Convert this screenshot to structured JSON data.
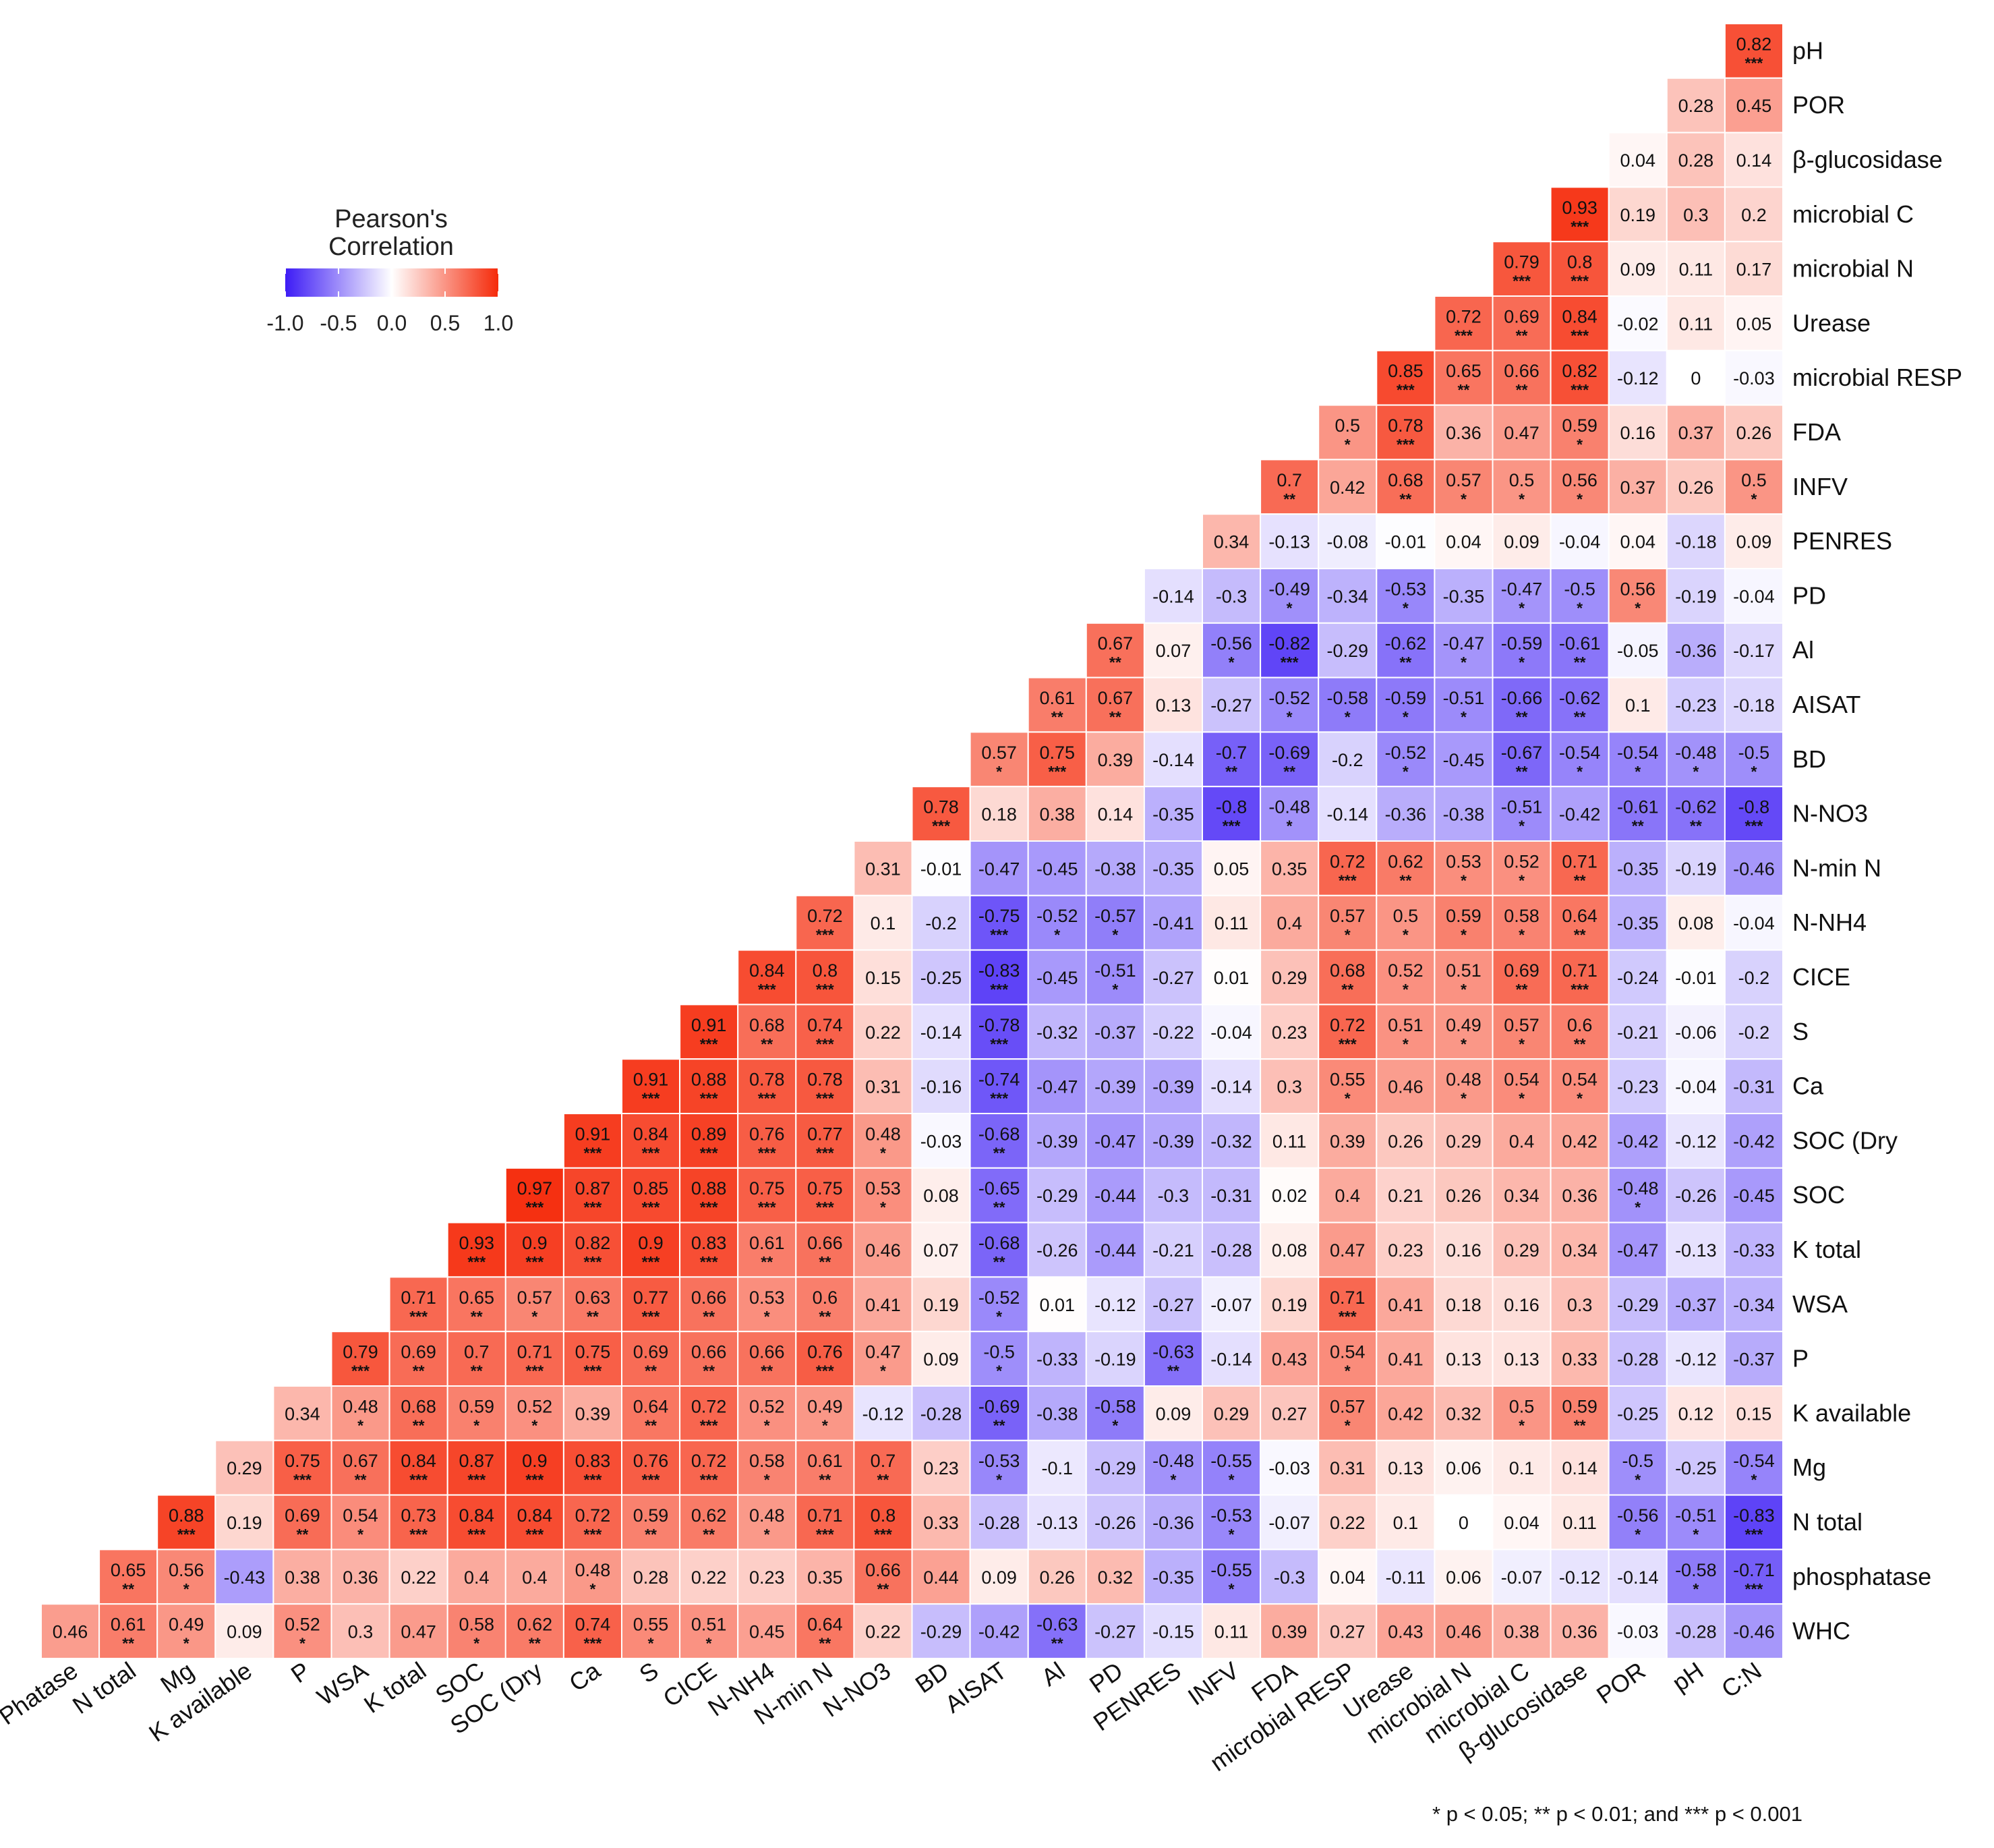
{
  "chart_data": {
    "type": "heatmap",
    "legend": {
      "title_line1": "Pearson's",
      "title_line2": "Correlation",
      "min": -1.0,
      "max": 1.0,
      "ticks": [
        "-1.0",
        "-0.5",
        "0.0",
        "0.5",
        "1.0"
      ],
      "colors": {
        "low": "#3d1cf5",
        "mid": "#ffffff",
        "high": "#f52a0a"
      },
      "placement": "top-left"
    },
    "footnote": "* p < 0.05; ** p < 0.01; and *** p < 0.001",
    "columns": [
      "Phatase",
      "N total",
      "Mg",
      "K available",
      "P",
      "WSA",
      "K total",
      "SOC",
      "SOC (Dry",
      "Ca",
      "S",
      "CICE",
      "N-NH4",
      "N-min N",
      "N-NO3",
      "BD",
      "AISAT",
      "Al",
      "PD",
      "PENRES",
      "INFV",
      "FDA",
      "microbial RESP",
      "Urease",
      "microbial N",
      "microbial C",
      "β-glucosidase",
      "POR",
      "pH",
      "C:N"
    ],
    "rows": [
      {
        "label": "pH",
        "start": 29,
        "values": [
          0.82
        ],
        "stars": [
          "***"
        ]
      },
      {
        "label": "POR",
        "start": 28,
        "values": [
          0.28,
          0.45
        ],
        "stars": [
          "",
          ""
        ]
      },
      {
        "label": "β-glucosidase",
        "start": 27,
        "values": [
          0.04,
          0.28,
          0.14
        ],
        "stars": [
          "",
          "",
          ""
        ]
      },
      {
        "label": "microbial C",
        "start": 26,
        "values": [
          0.93,
          0.19,
          0.3,
          0.2
        ],
        "stars": [
          "***",
          "",
          "",
          ""
        ]
      },
      {
        "label": "microbial N",
        "start": 25,
        "values": [
          0.79,
          0.8,
          0.09,
          0.11,
          0.17
        ],
        "stars": [
          "***",
          "***",
          "",
          "",
          ""
        ]
      },
      {
        "label": "Urease",
        "start": 24,
        "values": [
          0.72,
          0.69,
          0.84,
          -0.02,
          0.11,
          0.05
        ],
        "stars": [
          "***",
          "**",
          "***",
          "",
          "",
          ""
        ]
      },
      {
        "label": "microbial RESP",
        "start": 23,
        "values": [
          0.85,
          0.65,
          0.66,
          0.82,
          -0.12,
          0,
          -0.03
        ],
        "stars": [
          "***",
          "**",
          "**",
          "***",
          "",
          "",
          ""
        ]
      },
      {
        "label": "FDA",
        "start": 22,
        "values": [
          0.5,
          0.78,
          0.36,
          0.47,
          0.59,
          0.16,
          0.37,
          0.26
        ],
        "stars": [
          "*",
          "***",
          "",
          "",
          "*",
          "",
          "",
          ""
        ]
      },
      {
        "label": "INFV",
        "start": 21,
        "values": [
          0.7,
          0.42,
          0.68,
          0.57,
          0.5,
          0.56,
          0.37,
          0.26,
          0.5
        ],
        "stars": [
          "**",
          "",
          "**",
          "*",
          "*",
          "*",
          "",
          "",
          "*"
        ]
      },
      {
        "label": "PENRES",
        "start": 20,
        "values": [
          0.34,
          -0.13,
          -0.08,
          -0.01,
          0.04,
          0.09,
          -0.04,
          0.04,
          -0.18,
          0.09
        ],
        "stars": [
          "",
          "",
          "",
          "",
          "",
          "",
          "",
          "",
          "",
          ""
        ]
      },
      {
        "label": "PD",
        "start": 19,
        "values": [
          -0.14,
          -0.3,
          -0.49,
          -0.34,
          -0.53,
          -0.35,
          -0.47,
          -0.5,
          0.56,
          -0.19,
          -0.04
        ],
        "stars": [
          "",
          "",
          "*",
          "",
          "*",
          "",
          "*",
          "*",
          "*",
          "",
          ""
        ]
      },
      {
        "label": "Al",
        "start": 18,
        "values": [
          0.67,
          0.07,
          -0.56,
          -0.82,
          -0.29,
          -0.62,
          -0.47,
          -0.59,
          -0.61,
          -0.05,
          -0.36,
          -0.17
        ],
        "stars": [
          "**",
          "",
          "*",
          "***",
          "",
          "**",
          "*",
          "*",
          "**",
          "",
          "",
          ""
        ]
      },
      {
        "label": "AISAT",
        "start": 17,
        "values": [
          0.61,
          0.67,
          0.13,
          -0.27,
          -0.52,
          -0.58,
          -0.59,
          -0.51,
          -0.66,
          -0.62,
          0.1,
          -0.23,
          -0.18
        ],
        "stars": [
          "**",
          "**",
          "",
          "",
          "*",
          "*",
          "*",
          "*",
          "**",
          "**",
          "",
          "",
          ""
        ]
      },
      {
        "label": "BD",
        "start": 16,
        "values": [
          0.57,
          0.75,
          0.39,
          -0.14,
          -0.7,
          -0.69,
          -0.2,
          -0.52,
          -0.45,
          -0.67,
          -0.54,
          -0.54,
          -0.48,
          -0.5
        ],
        "stars": [
          "*",
          "***",
          "",
          "",
          "**",
          "**",
          "",
          "*",
          "",
          "**",
          "*",
          "*",
          "*",
          "*"
        ]
      },
      {
        "label": "N-NO3",
        "start": 15,
        "values": [
          0.78,
          0.18,
          0.38,
          0.14,
          -0.35,
          -0.8,
          -0.48,
          -0.14,
          -0.36,
          -0.38,
          -0.51,
          -0.42,
          -0.61,
          -0.62,
          -0.8
        ],
        "stars": [
          "***",
          "",
          "",
          "",
          "",
          "***",
          "*",
          "",
          "",
          "",
          "*",
          "",
          "**",
          "**",
          "***"
        ]
      },
      {
        "label": "N-min N",
        "start": 14,
        "values": [
          0.31,
          -0.01,
          -0.47,
          -0.45,
          -0.38,
          -0.35,
          0.05,
          0.35,
          0.72,
          0.62,
          0.53,
          0.52,
          0.71,
          -0.35,
          -0.19,
          -0.46
        ],
        "stars": [
          "",
          "",
          "",
          "",
          "",
          "",
          "",
          "",
          "***",
          "**",
          "*",
          "*",
          "**",
          "",
          "",
          ""
        ]
      },
      {
        "label": "N-NH4",
        "start": 13,
        "values": [
          0.72,
          0.1,
          -0.2,
          -0.75,
          -0.52,
          -0.57,
          -0.41,
          0.11,
          0.4,
          0.57,
          0.5,
          0.59,
          0.58,
          0.64,
          -0.35,
          0.08,
          -0.04
        ],
        "stars": [
          "***",
          "",
          "",
          "***",
          "*",
          "*",
          "",
          "",
          "",
          "*",
          "*",
          "*",
          "*",
          "**",
          "",
          "",
          ""
        ]
      },
      {
        "label": "CICE",
        "start": 12,
        "values": [
          0.84,
          0.8,
          0.15,
          -0.25,
          -0.83,
          -0.45,
          -0.51,
          -0.27,
          0.01,
          0.29,
          0.68,
          0.52,
          0.51,
          0.69,
          0.71,
          -0.24,
          -0.01,
          -0.2
        ],
        "stars": [
          "***",
          "***",
          "",
          "",
          "***",
          "",
          "*",
          "",
          "",
          "",
          "**",
          "*",
          "*",
          "**",
          "***",
          "",
          "",
          ""
        ]
      },
      {
        "label": "S",
        "start": 11,
        "values": [
          0.91,
          0.68,
          0.74,
          0.22,
          -0.14,
          -0.78,
          -0.32,
          -0.37,
          -0.22,
          -0.04,
          0.23,
          0.72,
          0.51,
          0.49,
          0.57,
          0.6,
          -0.21,
          -0.06,
          -0.2
        ],
        "stars": [
          "***",
          "**",
          "***",
          "",
          "",
          "***",
          "",
          "",
          "",
          "",
          "",
          "***",
          "*",
          "*",
          "*",
          "**",
          "",
          "",
          ""
        ]
      },
      {
        "label": "Ca",
        "start": 10,
        "values": [
          0.91,
          0.88,
          0.78,
          0.78,
          0.31,
          -0.16,
          -0.74,
          -0.47,
          -0.39,
          -0.39,
          -0.14,
          0.3,
          0.55,
          0.46,
          0.48,
          0.54,
          0.54,
          -0.23,
          -0.04,
          -0.31
        ],
        "stars": [
          "***",
          "***",
          "***",
          "***",
          "",
          "",
          "***",
          "",
          "",
          "",
          "",
          "",
          "*",
          "",
          "*",
          "*",
          "*",
          "",
          "",
          ""
        ]
      },
      {
        "label": "SOC (Dry",
        "start": 9,
        "values": [
          0.91,
          0.84,
          0.89,
          0.76,
          0.77,
          0.48,
          -0.03,
          -0.68,
          -0.39,
          -0.47,
          -0.39,
          -0.32,
          0.11,
          0.39,
          0.26,
          0.29,
          0.4,
          0.42,
          -0.42,
          -0.12,
          -0.42
        ],
        "stars": [
          "***",
          "***",
          "***",
          "***",
          "***",
          "*",
          "",
          "**",
          "",
          "",
          "",
          "",
          "",
          "",
          "",
          "",
          "",
          "",
          "",
          "",
          ""
        ]
      },
      {
        "label": "SOC",
        "start": 8,
        "values": [
          0.97,
          0.87,
          0.85,
          0.88,
          0.75,
          0.75,
          0.53,
          0.08,
          -0.65,
          -0.29,
          -0.44,
          -0.3,
          -0.31,
          0.02,
          0.4,
          0.21,
          0.26,
          0.34,
          0.36,
          -0.48,
          -0.26,
          -0.45
        ],
        "stars": [
          "***",
          "***",
          "***",
          "***",
          "***",
          "***",
          "*",
          "",
          "**",
          "",
          "",
          "",
          "",
          "",
          "",
          "",
          "",
          "",
          "",
          "*",
          "",
          ""
        ]
      },
      {
        "label": "K total",
        "start": 7,
        "values": [
          0.93,
          0.9,
          0.82,
          0.9,
          0.83,
          0.61,
          0.66,
          0.46,
          0.07,
          -0.68,
          -0.26,
          -0.44,
          -0.21,
          -0.28,
          0.08,
          0.47,
          0.23,
          0.16,
          0.29,
          0.34,
          -0.47,
          -0.13,
          -0.33
        ],
        "stars": [
          "***",
          "***",
          "***",
          "***",
          "***",
          "**",
          "**",
          "",
          "",
          "**",
          "",
          "",
          "",
          "",
          "",
          "",
          "",
          "",
          "",
          "",
          "",
          "",
          ""
        ]
      },
      {
        "label": "WSA",
        "start": 6,
        "values": [
          0.71,
          0.65,
          0.57,
          0.63,
          0.77,
          0.66,
          0.53,
          0.6,
          0.41,
          0.19,
          -0.52,
          0.01,
          -0.12,
          -0.27,
          -0.07,
          0.19,
          0.71,
          0.41,
          0.18,
          0.16,
          0.3,
          -0.29,
          -0.37,
          -0.34
        ],
        "stars": [
          "***",
          "**",
          "*",
          "**",
          "***",
          "**",
          "*",
          "**",
          "",
          "",
          "*",
          "",
          "",
          "",
          "",
          "",
          "***",
          "",
          "",
          "",
          "",
          "",
          "",
          ""
        ]
      },
      {
        "label": "P",
        "start": 5,
        "values": [
          0.79,
          0.69,
          0.7,
          0.71,
          0.75,
          0.69,
          0.66,
          0.66,
          0.76,
          0.47,
          0.09,
          -0.5,
          -0.33,
          -0.19,
          -0.63,
          -0.14,
          0.43,
          0.54,
          0.41,
          0.13,
          0.13,
          0.33,
          -0.28,
          -0.12,
          -0.37
        ],
        "stars": [
          "***",
          "**",
          "**",
          "***",
          "***",
          "**",
          "**",
          "**",
          "***",
          "*",
          "",
          "*",
          "",
          "",
          "**",
          "",
          "",
          "*",
          "",
          "",
          "",
          "",
          "",
          "",
          ""
        ]
      },
      {
        "label": "K available",
        "start": 4,
        "values": [
          0.34,
          0.48,
          0.68,
          0.59,
          0.52,
          0.39,
          0.64,
          0.72,
          0.52,
          0.49,
          -0.12,
          -0.28,
          -0.69,
          -0.38,
          -0.58,
          0.09,
          0.29,
          0.27,
          0.57,
          0.42,
          0.32,
          0.5,
          0.59,
          -0.25,
          0.12,
          0.15
        ],
        "stars": [
          "",
          "*",
          "**",
          "*",
          "*",
          "",
          "**",
          "***",
          "*",
          "*",
          "",
          "",
          "**",
          "",
          "*",
          "",
          "",
          "",
          "*",
          "",
          "",
          "*",
          "**",
          "",
          "",
          ""
        ]
      },
      {
        "label": "Mg",
        "start": 3,
        "values": [
          0.29,
          0.75,
          0.67,
          0.84,
          0.87,
          0.9,
          0.83,
          0.76,
          0.72,
          0.58,
          0.61,
          0.7,
          0.23,
          -0.53,
          -0.1,
          -0.29,
          -0.48,
          -0.55,
          -0.03,
          0.31,
          0.13,
          0.06,
          0.1,
          0.14,
          -0.5,
          -0.25,
          -0.54
        ],
        "stars": [
          "",
          "***",
          "**",
          "***",
          "***",
          "***",
          "***",
          "***",
          "***",
          "*",
          "**",
          "**",
          "",
          "*",
          "",
          "",
          "*",
          "*",
          "",
          "",
          "",
          "",
          "",
          "",
          "*",
          "",
          "*"
        ]
      },
      {
        "label": "N total",
        "start": 2,
        "values": [
          0.88,
          0.19,
          0.69,
          0.54,
          0.73,
          0.84,
          0.84,
          0.72,
          0.59,
          0.62,
          0.48,
          0.71,
          0.8,
          0.33,
          -0.28,
          -0.13,
          -0.26,
          -0.36,
          -0.53,
          -0.07,
          0.22,
          0.1,
          0,
          0.04,
          0.11,
          -0.56,
          -0.51,
          -0.83
        ],
        "stars": [
          "***",
          "",
          "**",
          "*",
          "***",
          "***",
          "***",
          "***",
          "**",
          "**",
          "*",
          "***",
          "***",
          "",
          "",
          "",
          "",
          "",
          "*",
          "",
          "",
          "",
          "",
          "",
          "",
          "*",
          "*",
          "***"
        ]
      },
      {
        "label": "phosphatase",
        "start": 1,
        "values": [
          0.65,
          0.56,
          -0.43,
          0.38,
          0.36,
          0.22,
          0.4,
          0.4,
          0.48,
          0.28,
          0.22,
          0.23,
          0.35,
          0.66,
          0.44,
          0.09,
          0.26,
          0.32,
          -0.35,
          -0.55,
          -0.3,
          0.04,
          -0.11,
          0.06,
          -0.07,
          -0.12,
          -0.14,
          -0.58,
          -0.71
        ],
        "stars": [
          "**",
          "*",
          "",
          "",
          "",
          "",
          "",
          "",
          "*",
          "",
          "",
          "",
          "",
          "**",
          "",
          "",
          "",
          "",
          "",
          "*",
          "",
          "",
          "",
          "",
          "",
          "",
          "",
          "*",
          "***"
        ]
      },
      {
        "label": "WHC",
        "start": 0,
        "values": [
          0.46,
          0.61,
          0.49,
          0.09,
          0.52,
          0.3,
          0.47,
          0.58,
          0.62,
          0.74,
          0.55,
          0.51,
          0.45,
          0.64,
          0.22,
          -0.29,
          -0.42,
          -0.63,
          -0.27,
          -0.15,
          0.11,
          0.39,
          0.27,
          0.43,
          0.46,
          0.38,
          0.36,
          -0.03,
          -0.28,
          -0.46
        ],
        "stars": [
          "",
          "**",
          "*",
          "",
          "*",
          "",
          "",
          "*",
          "**",
          "***",
          "*",
          "*",
          "",
          "**",
          "",
          "",
          "",
          "**",
          "",
          "",
          "",
          "",
          "",
          "",
          "",
          "",
          "",
          "",
          "",
          ""
        ]
      }
    ]
  }
}
